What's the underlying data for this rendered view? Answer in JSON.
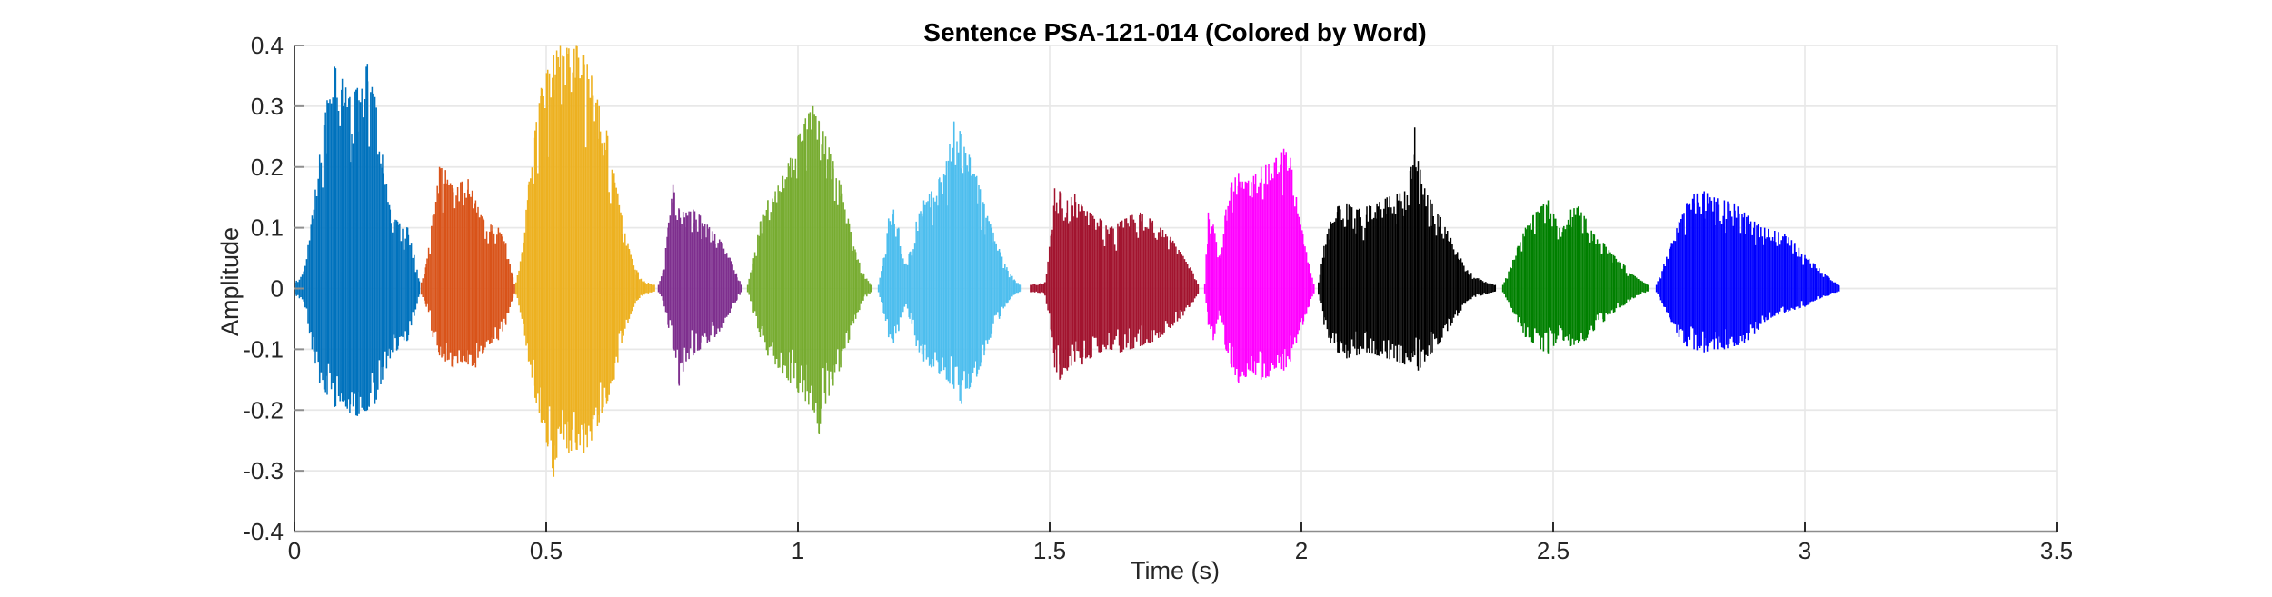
{
  "figure": {
    "background": "#ffffff"
  },
  "style": {
    "grid_color": "#e8e8e8",
    "x_spine_color": "#8c8c8c",
    "y_spine_color": "#474747",
    "x_tick_color": "#2b2b2b",
    "y_tick_color": "#8f8f8f",
    "label_color": "#262626",
    "title_color": "#000000"
  },
  "chart_data": {
    "type": "line",
    "subtype": "audio-waveform-colored-by-word",
    "title": "Sentence PSA-121-014 (Colored by Word)",
    "xlabel": "Time (s)",
    "ylabel": "Amplitude",
    "xlim": [
      0,
      3.5
    ],
    "ylim": [
      -0.4,
      0.4
    ],
    "grid": true,
    "legend": false,
    "x_tick_values": [
      0,
      0.5,
      1,
      1.5,
      2,
      2.5,
      3,
      3.5
    ],
    "x_tick_labels": [
      "0",
      "0.5",
      "1",
      "1.5",
      "2",
      "2.5",
      "3",
      "3.5"
    ],
    "y_tick_values": [
      -0.4,
      -0.3,
      -0.2,
      -0.1,
      0,
      0.1,
      0.2,
      0.3,
      0.4
    ],
    "y_tick_labels": [
      "-0.4",
      "-0.3",
      "-0.2",
      "-0.1",
      "0",
      "0.1",
      "0.2",
      "0.3",
      "0.4"
    ],
    "n_words": 11,
    "segments": [
      {
        "word_index": 1,
        "color": "#0072BD",
        "start": 0.001,
        "end": 0.248,
        "peak": 0.37,
        "trough": -0.21,
        "envelope": [
          [
            0.001,
            0.01,
            0.01
          ],
          [
            0.02,
            0.03,
            0.025
          ],
          [
            0.035,
            0.12,
            0.1
          ],
          [
            0.05,
            0.22,
            0.155
          ],
          [
            0.065,
            0.31,
            0.175
          ],
          [
            0.08,
            0.365,
            0.195
          ],
          [
            0.095,
            0.345,
            0.185
          ],
          [
            0.11,
            0.315,
            0.205
          ],
          [
            0.125,
            0.33,
            0.21
          ],
          [
            0.145,
            0.37,
            0.2
          ],
          [
            0.16,
            0.315,
            0.19
          ],
          [
            0.175,
            0.22,
            0.15
          ],
          [
            0.19,
            0.13,
            0.115
          ],
          [
            0.205,
            0.11,
            0.1
          ],
          [
            0.225,
            0.1,
            0.085
          ],
          [
            0.238,
            0.055,
            0.045
          ],
          [
            0.248,
            0.012,
            0.01
          ]
        ]
      },
      {
        "word_index": 2,
        "color": "#D95319",
        "start": 0.252,
        "end": 0.437,
        "peak": 0.2,
        "trough": -0.13,
        "envelope": [
          [
            0.252,
            0.01,
            0.01
          ],
          [
            0.262,
            0.04,
            0.03
          ],
          [
            0.275,
            0.12,
            0.08
          ],
          [
            0.288,
            0.2,
            0.11
          ],
          [
            0.3,
            0.195,
            0.12
          ],
          [
            0.315,
            0.165,
            0.13
          ],
          [
            0.33,
            0.175,
            0.12
          ],
          [
            0.345,
            0.18,
            0.125
          ],
          [
            0.36,
            0.145,
            0.13
          ],
          [
            0.375,
            0.115,
            0.105
          ],
          [
            0.39,
            0.105,
            0.09
          ],
          [
            0.405,
            0.1,
            0.085
          ],
          [
            0.42,
            0.075,
            0.06
          ],
          [
            0.432,
            0.025,
            0.02
          ],
          [
            0.437,
            0.008,
            0.008
          ]
        ]
      },
      {
        "word_index": 3,
        "color": "#EDB120",
        "start": 0.44,
        "end": 0.715,
        "peak": 0.4,
        "trough": -0.31,
        "envelope": [
          [
            0.44,
            0.01,
            0.01
          ],
          [
            0.452,
            0.06,
            0.05
          ],
          [
            0.465,
            0.17,
            0.12
          ],
          [
            0.478,
            0.26,
            0.18
          ],
          [
            0.49,
            0.33,
            0.22
          ],
          [
            0.503,
            0.36,
            0.26
          ],
          [
            0.515,
            0.385,
            0.31
          ],
          [
            0.528,
            0.4,
            0.24
          ],
          [
            0.545,
            0.395,
            0.27
          ],
          [
            0.56,
            0.4,
            0.265
          ],
          [
            0.575,
            0.385,
            0.27
          ],
          [
            0.59,
            0.35,
            0.25
          ],
          [
            0.605,
            0.3,
            0.22
          ],
          [
            0.62,
            0.26,
            0.19
          ],
          [
            0.635,
            0.19,
            0.15
          ],
          [
            0.65,
            0.12,
            0.09
          ],
          [
            0.665,
            0.065,
            0.05
          ],
          [
            0.68,
            0.03,
            0.02
          ],
          [
            0.695,
            0.012,
            0.01
          ],
          [
            0.715,
            0.006,
            0.005
          ]
        ]
      },
      {
        "word_index": 4,
        "color": "#7E2F8E",
        "start": 0.723,
        "end": 0.888,
        "peak": 0.17,
        "trough": -0.16,
        "envelope": [
          [
            0.723,
            0.006,
            0.006
          ],
          [
            0.732,
            0.03,
            0.02
          ],
          [
            0.742,
            0.1,
            0.06
          ],
          [
            0.752,
            0.17,
            0.1
          ],
          [
            0.764,
            0.13,
            0.16
          ],
          [
            0.778,
            0.125,
            0.12
          ],
          [
            0.792,
            0.13,
            0.11
          ],
          [
            0.806,
            0.12,
            0.1
          ],
          [
            0.82,
            0.105,
            0.09
          ],
          [
            0.835,
            0.09,
            0.08
          ],
          [
            0.85,
            0.075,
            0.065
          ],
          [
            0.865,
            0.05,
            0.04
          ],
          [
            0.878,
            0.025,
            0.02
          ],
          [
            0.888,
            0.006,
            0.006
          ]
        ]
      },
      {
        "word_index": 5,
        "color": "#77AC30",
        "start": 0.9,
        "end": 1.145,
        "peak": 0.3,
        "trough": -0.24,
        "envelope": [
          [
            0.9,
            0.006,
            0.006
          ],
          [
            0.912,
            0.05,
            0.04
          ],
          [
            0.925,
            0.11,
            0.08
          ],
          [
            0.94,
            0.145,
            0.11
          ],
          [
            0.955,
            0.16,
            0.125
          ],
          [
            0.97,
            0.185,
            0.14
          ],
          [
            0.985,
            0.215,
            0.155
          ],
          [
            1.0,
            0.25,
            0.17
          ],
          [
            1.015,
            0.28,
            0.185
          ],
          [
            1.03,
            0.3,
            0.2
          ],
          [
            1.042,
            0.275,
            0.24
          ],
          [
            1.055,
            0.25,
            0.19
          ],
          [
            1.07,
            0.21,
            0.16
          ],
          [
            1.085,
            0.17,
            0.13
          ],
          [
            1.1,
            0.115,
            0.09
          ],
          [
            1.115,
            0.06,
            0.05
          ],
          [
            1.13,
            0.025,
            0.02
          ],
          [
            1.145,
            0.006,
            0.006
          ]
        ]
      },
      {
        "word_index": 6,
        "color": "#4DBEEE",
        "start": 1.16,
        "end": 1.443,
        "peak": 0.28,
        "trough": -0.19,
        "envelope": [
          [
            1.16,
            0.006,
            0.006
          ],
          [
            1.17,
            0.05,
            0.04
          ],
          [
            1.18,
            0.115,
            0.08
          ],
          [
            1.19,
            0.13,
            0.09
          ],
          [
            1.2,
            0.1,
            0.07
          ],
          [
            1.212,
            0.04,
            0.03
          ],
          [
            1.222,
            0.06,
            0.05
          ],
          [
            1.235,
            0.11,
            0.095
          ],
          [
            1.25,
            0.145,
            0.12
          ],
          [
            1.265,
            0.16,
            0.13
          ],
          [
            1.28,
            0.18,
            0.14
          ],
          [
            1.295,
            0.21,
            0.15
          ],
          [
            1.31,
            0.275,
            0.165
          ],
          [
            1.325,
            0.255,
            0.19
          ],
          [
            1.34,
            0.22,
            0.165
          ],
          [
            1.355,
            0.185,
            0.145
          ],
          [
            1.37,
            0.14,
            0.11
          ],
          [
            1.385,
            0.1,
            0.075
          ],
          [
            1.4,
            0.065,
            0.05
          ],
          [
            1.415,
            0.035,
            0.025
          ],
          [
            1.43,
            0.015,
            0.01
          ],
          [
            1.443,
            0.006,
            0.005
          ]
        ]
      },
      {
        "word_index": 7,
        "color": "#A2142F",
        "start": 1.462,
        "end": 1.795,
        "peak": 0.165,
        "trough": -0.15,
        "envelope": [
          [
            1.462,
            0.006,
            0.006
          ],
          [
            1.49,
            0.01,
            0.008
          ],
          [
            1.503,
            0.09,
            0.07
          ],
          [
            1.51,
            0.165,
            0.13
          ],
          [
            1.52,
            0.16,
            0.15
          ],
          [
            1.535,
            0.145,
            0.135
          ],
          [
            1.55,
            0.155,
            0.12
          ],
          [
            1.565,
            0.135,
            0.125
          ],
          [
            1.58,
            0.125,
            0.115
          ],
          [
            1.6,
            0.115,
            0.105
          ],
          [
            1.62,
            0.1,
            0.1
          ],
          [
            1.64,
            0.11,
            0.105
          ],
          [
            1.66,
            0.12,
            0.1
          ],
          [
            1.68,
            0.125,
            0.095
          ],
          [
            1.7,
            0.115,
            0.09
          ],
          [
            1.72,
            0.1,
            0.08
          ],
          [
            1.74,
            0.085,
            0.065
          ],
          [
            1.76,
            0.06,
            0.05
          ],
          [
            1.78,
            0.035,
            0.03
          ],
          [
            1.795,
            0.008,
            0.008
          ]
        ]
      },
      {
        "word_index": 8,
        "color": "#FF00FF",
        "start": 1.808,
        "end": 2.025,
        "peak": 0.23,
        "trough": -0.155,
        "envelope": [
          [
            1.808,
            0.008,
            0.008
          ],
          [
            1.815,
            0.125,
            0.06
          ],
          [
            1.825,
            0.105,
            0.085
          ],
          [
            1.838,
            0.05,
            0.045
          ],
          [
            1.85,
            0.13,
            0.1
          ],
          [
            1.862,
            0.175,
            0.13
          ],
          [
            1.875,
            0.19,
            0.155
          ],
          [
            1.89,
            0.175,
            0.145
          ],
          [
            1.905,
            0.185,
            0.14
          ],
          [
            1.92,
            0.2,
            0.15
          ],
          [
            1.935,
            0.205,
            0.145
          ],
          [
            1.95,
            0.215,
            0.13
          ],
          [
            1.965,
            0.23,
            0.135
          ],
          [
            1.978,
            0.215,
            0.12
          ],
          [
            1.99,
            0.15,
            0.09
          ],
          [
            2.003,
            0.09,
            0.06
          ],
          [
            2.015,
            0.04,
            0.03
          ],
          [
            2.025,
            0.008,
            0.008
          ]
        ]
      },
      {
        "word_index": 9,
        "color": "#000000",
        "start": 2.034,
        "end": 2.385,
        "peak": 0.265,
        "trough": -0.135,
        "envelope": [
          [
            2.034,
            0.01,
            0.01
          ],
          [
            2.045,
            0.07,
            0.06
          ],
          [
            2.058,
            0.11,
            0.09
          ],
          [
            2.072,
            0.135,
            0.105
          ],
          [
            2.09,
            0.14,
            0.115
          ],
          [
            2.11,
            0.13,
            0.11
          ],
          [
            2.13,
            0.135,
            0.105
          ],
          [
            2.15,
            0.14,
            0.11
          ],
          [
            2.17,
            0.15,
            0.115
          ],
          [
            2.19,
            0.155,
            0.12
          ],
          [
            2.205,
            0.16,
            0.125
          ],
          [
            2.218,
            0.2,
            0.12
          ],
          [
            2.225,
            0.265,
            0.11
          ],
          [
            2.232,
            0.21,
            0.135
          ],
          [
            2.245,
            0.165,
            0.12
          ],
          [
            2.26,
            0.14,
            0.105
          ],
          [
            2.275,
            0.12,
            0.09
          ],
          [
            2.29,
            0.095,
            0.07
          ],
          [
            2.31,
            0.06,
            0.045
          ],
          [
            2.33,
            0.03,
            0.02
          ],
          [
            2.355,
            0.015,
            0.012
          ],
          [
            2.385,
            0.006,
            0.005
          ]
        ]
      },
      {
        "word_index": 10,
        "color": "#008000",
        "start": 2.4,
        "end": 2.688,
        "peak": 0.145,
        "trough": -0.11,
        "envelope": [
          [
            2.4,
            0.006,
            0.006
          ],
          [
            2.415,
            0.035,
            0.03
          ],
          [
            2.43,
            0.07,
            0.055
          ],
          [
            2.445,
            0.1,
            0.08
          ],
          [
            2.46,
            0.12,
            0.09
          ],
          [
            2.475,
            0.135,
            0.1
          ],
          [
            2.49,
            0.145,
            0.108
          ],
          [
            2.505,
            0.115,
            0.09
          ],
          [
            2.52,
            0.1,
            0.085
          ],
          [
            2.535,
            0.13,
            0.095
          ],
          [
            2.55,
            0.135,
            0.09
          ],
          [
            2.565,
            0.115,
            0.085
          ],
          [
            2.58,
            0.09,
            0.07
          ],
          [
            2.6,
            0.075,
            0.055
          ],
          [
            2.62,
            0.055,
            0.04
          ],
          [
            2.64,
            0.04,
            0.028
          ],
          [
            2.66,
            0.022,
            0.016
          ],
          [
            2.688,
            0.006,
            0.005
          ]
        ]
      },
      {
        "word_index": 11,
        "color": "#0000FF",
        "start": 2.705,
        "end": 3.068,
        "peak": 0.16,
        "trough": -0.105,
        "envelope": [
          [
            2.705,
            0.006,
            0.006
          ],
          [
            2.72,
            0.04,
            0.03
          ],
          [
            2.735,
            0.075,
            0.055
          ],
          [
            2.75,
            0.11,
            0.08
          ],
          [
            2.765,
            0.14,
            0.095
          ],
          [
            2.78,
            0.155,
            0.1
          ],
          [
            2.8,
            0.16,
            0.105
          ],
          [
            2.82,
            0.15,
            0.1
          ],
          [
            2.84,
            0.145,
            0.1
          ],
          [
            2.86,
            0.14,
            0.095
          ],
          [
            2.88,
            0.125,
            0.09
          ],
          [
            2.9,
            0.11,
            0.075
          ],
          [
            2.92,
            0.1,
            0.055
          ],
          [
            2.94,
            0.095,
            0.045
          ],
          [
            2.96,
            0.09,
            0.04
          ],
          [
            2.98,
            0.075,
            0.035
          ],
          [
            3.0,
            0.055,
            0.03
          ],
          [
            3.02,
            0.04,
            0.02
          ],
          [
            3.045,
            0.02,
            0.012
          ],
          [
            3.068,
            0.005,
            0.005
          ]
        ]
      }
    ]
  }
}
